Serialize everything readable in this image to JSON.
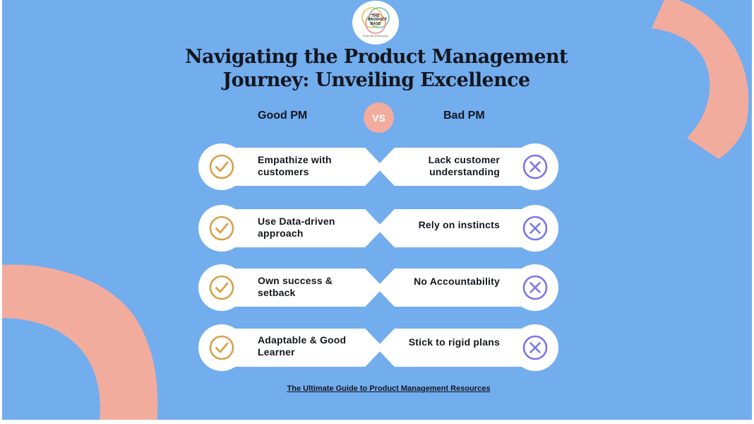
{
  "logo": {
    "line1": "THE PRODUCT BASE",
    "tagline": "Inspiring Technology"
  },
  "title": {
    "line1": "Navigating the Product Management",
    "line2": "Journey: Unveiling Excellence"
  },
  "columns": {
    "good": "Good PM",
    "vs": "VS",
    "bad": "Bad PM"
  },
  "rows": [
    {
      "good": [
        "Empathize with",
        "customers"
      ],
      "bad": [
        "Lack customer",
        "understanding"
      ]
    },
    {
      "good": [
        "Use Data-driven",
        "approach"
      ],
      "bad": [
        "Rely on instincts"
      ]
    },
    {
      "good": [
        "Own success &",
        "setback"
      ],
      "bad": [
        "No Accountability"
      ]
    },
    {
      "good": [
        "Adaptable & Good",
        "Learner"
      ],
      "bad": [
        "Stick to rigid plans"
      ]
    }
  ],
  "footer": {
    "link": "The Ultimate Guide to Product Management Resources"
  },
  "colors": {
    "background": "#72adee",
    "accent": "#f2ac9e",
    "check": "#d9a04a",
    "cross": "#7b77e6",
    "text": "#14171f"
  },
  "icons": {
    "good": "check-circle-icon",
    "bad": "x-circle-icon"
  }
}
